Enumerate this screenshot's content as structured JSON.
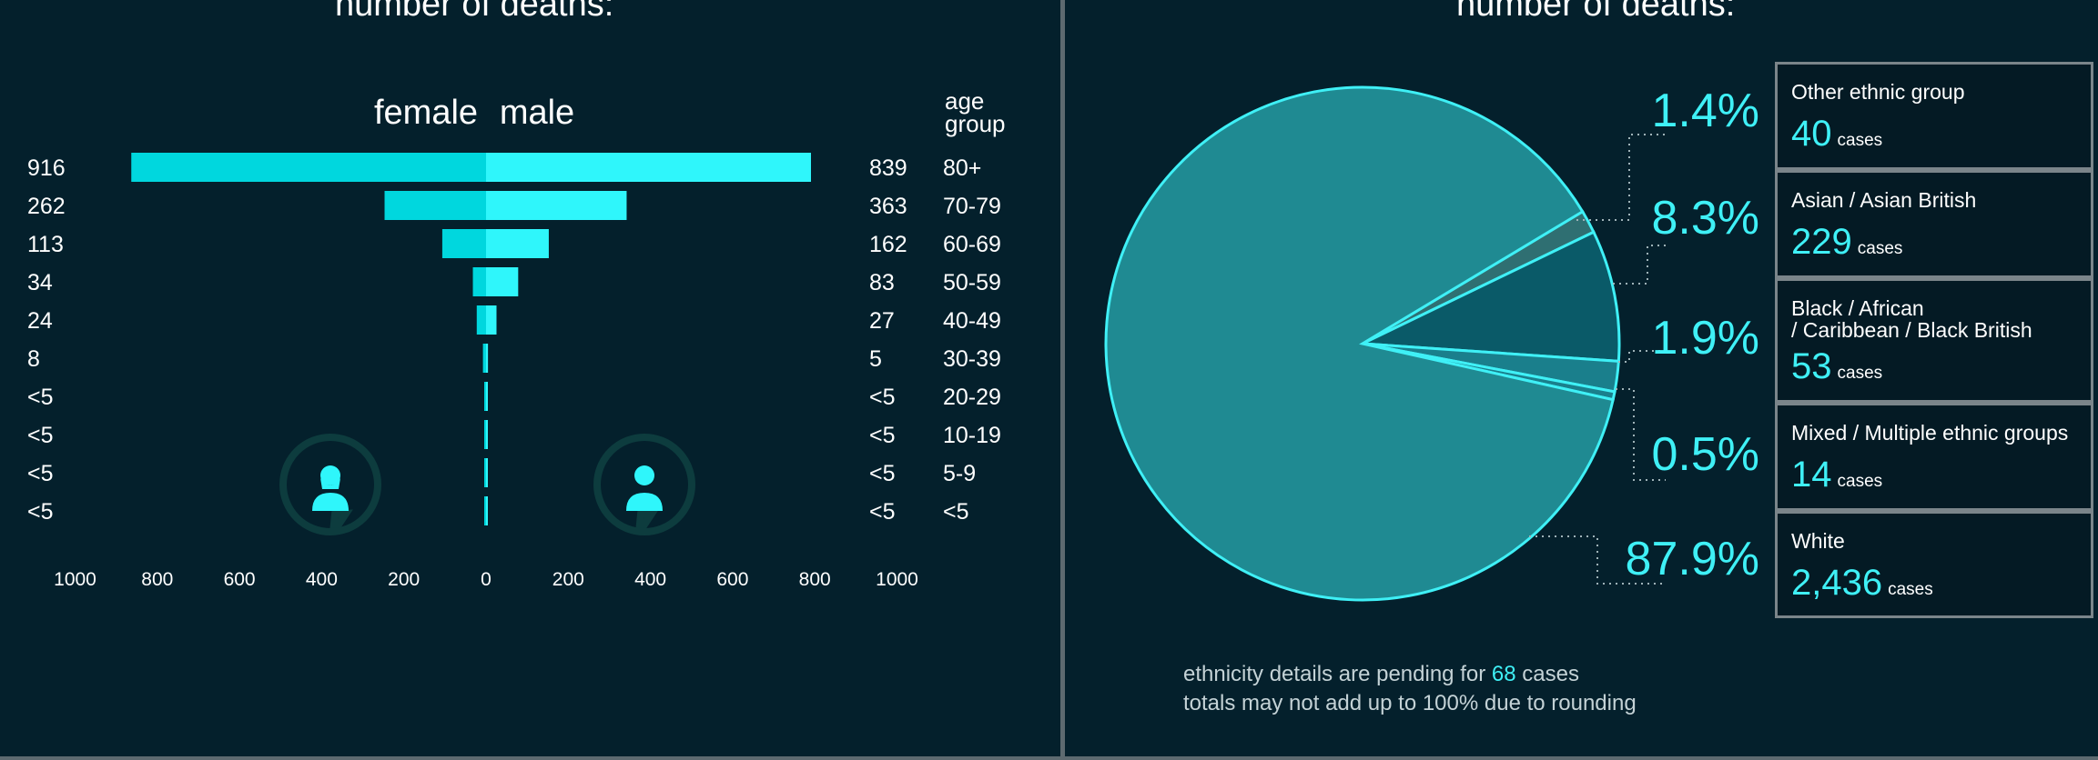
{
  "left_panel": {
    "heading": "number of deaths:"
  },
  "right_panel": {
    "heading": "number of deaths:"
  },
  "colors": {
    "female_bar": "#00d7de",
    "male_bar": "#2ff6fb",
    "accent": "#3ff0f6",
    "pie_main": "#1f8a92",
    "pie_dark": "#0a5a68",
    "icon_ring": "#0d3c3e"
  },
  "icons": {
    "female": "female-person-icon",
    "male": "male-person-icon"
  },
  "notes": {
    "line1_prefix": "ethnicity details are pending for",
    "line1_count": "68",
    "line1_suffix": "cases",
    "line2": "totals may not add up to 100% due to rounding"
  },
  "chart_data": [
    {
      "type": "bar",
      "orientation": "horizontal",
      "layout": "population-pyramid",
      "series_labels": [
        "female",
        "male"
      ],
      "category_header": "age group",
      "categories": [
        "80+",
        "70-79",
        "60-69",
        "50-59",
        "40-49",
        "30-39",
        "20-29",
        "10-19",
        "5-9",
        "<5"
      ],
      "series": [
        {
          "name": "female",
          "values": [
            916,
            262,
            113,
            34,
            24,
            8,
            0,
            0,
            0,
            0
          ],
          "labels": [
            "916",
            "262",
            "113",
            "34",
            "24",
            "8",
            "<5",
            "<5",
            "<5",
            "<5"
          ]
        },
        {
          "name": "male",
          "values": [
            839,
            363,
            162,
            83,
            27,
            5,
            0,
            0,
            0,
            0
          ],
          "labels": [
            "839",
            "363",
            "162",
            "83",
            "27",
            "5",
            "<5",
            "<5",
            "<5",
            "<5"
          ]
        }
      ],
      "xlim": [
        -1000,
        1000
      ],
      "female_ticks": [
        "1000",
        "800",
        "600",
        "400",
        "200"
      ],
      "zero_tick": "0",
      "male_ticks": [
        "200",
        "400",
        "600",
        "800",
        "1000"
      ]
    },
    {
      "type": "pie",
      "categories": [
        "Other ethnic group",
        "Asian / Asian British",
        "Black / African / Caribbean / Black British",
        "Mixed / Multiple ethnic groups",
        "White"
      ],
      "name_lines": [
        [
          "Other ethnic group"
        ],
        [
          "Asian / Asian British"
        ],
        [
          "Black / African",
          "/ Caribbean / Black British"
        ],
        [
          "Mixed / Multiple ethnic groups"
        ],
        [
          "White"
        ]
      ],
      "values": [
        40,
        229,
        53,
        14,
        2436
      ],
      "percent_labels": [
        "1.4%",
        "8.3%",
        "1.9%",
        "0.5%",
        "87.9%"
      ],
      "count_labels": [
        "40",
        "229",
        "53",
        "14",
        "2,436"
      ],
      "unit": "cases",
      "slice_colors": [
        "#2f6f72",
        "#0a5a68",
        "#1a7f8c",
        "#1a7f8c",
        "#1f8a92"
      ]
    }
  ]
}
